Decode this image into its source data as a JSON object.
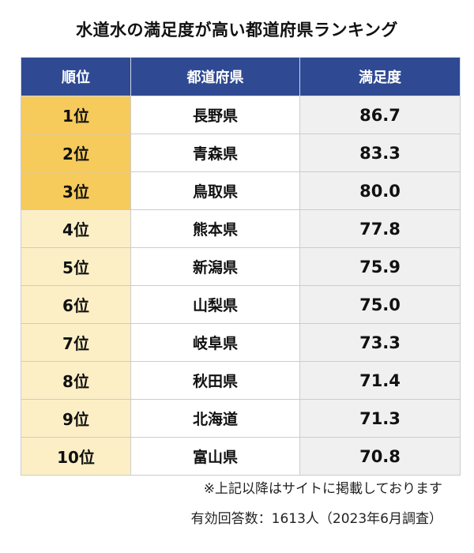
{
  "colors": {
    "header_bg": "#2f4a93",
    "header_text": "#ffffff",
    "top3_rank_bg": "#f6cb5c",
    "rank_bg": "#fcefc6",
    "score_bg": "#f0f0f0"
  },
  "chart_data": {
    "type": "table",
    "title": "水道水の満足度が高い都道府県ランキング",
    "columns": [
      "順位",
      "都道府県",
      "満足度"
    ],
    "rows": [
      {
        "rank": "1位",
        "prefecture": "長野県",
        "score": "86.7"
      },
      {
        "rank": "2位",
        "prefecture": "青森県",
        "score": "83.3"
      },
      {
        "rank": "3位",
        "prefecture": "鳥取県",
        "score": "80.0"
      },
      {
        "rank": "4位",
        "prefecture": "熊本県",
        "score": "77.8"
      },
      {
        "rank": "5位",
        "prefecture": "新潟県",
        "score": "75.9"
      },
      {
        "rank": "6位",
        "prefecture": "山梨県",
        "score": "75.0"
      },
      {
        "rank": "7位",
        "prefecture": "岐阜県",
        "score": "73.3"
      },
      {
        "rank": "8位",
        "prefecture": "秋田県",
        "score": "71.4"
      },
      {
        "rank": "9位",
        "prefecture": "北海道",
        "score": "71.3"
      },
      {
        "rank": "10位",
        "prefecture": "富山県",
        "score": "70.8"
      }
    ],
    "note": "※上記以降はサイトに掲載しております",
    "respondents": "有効回答数：1613人（2023年6月調査）"
  }
}
